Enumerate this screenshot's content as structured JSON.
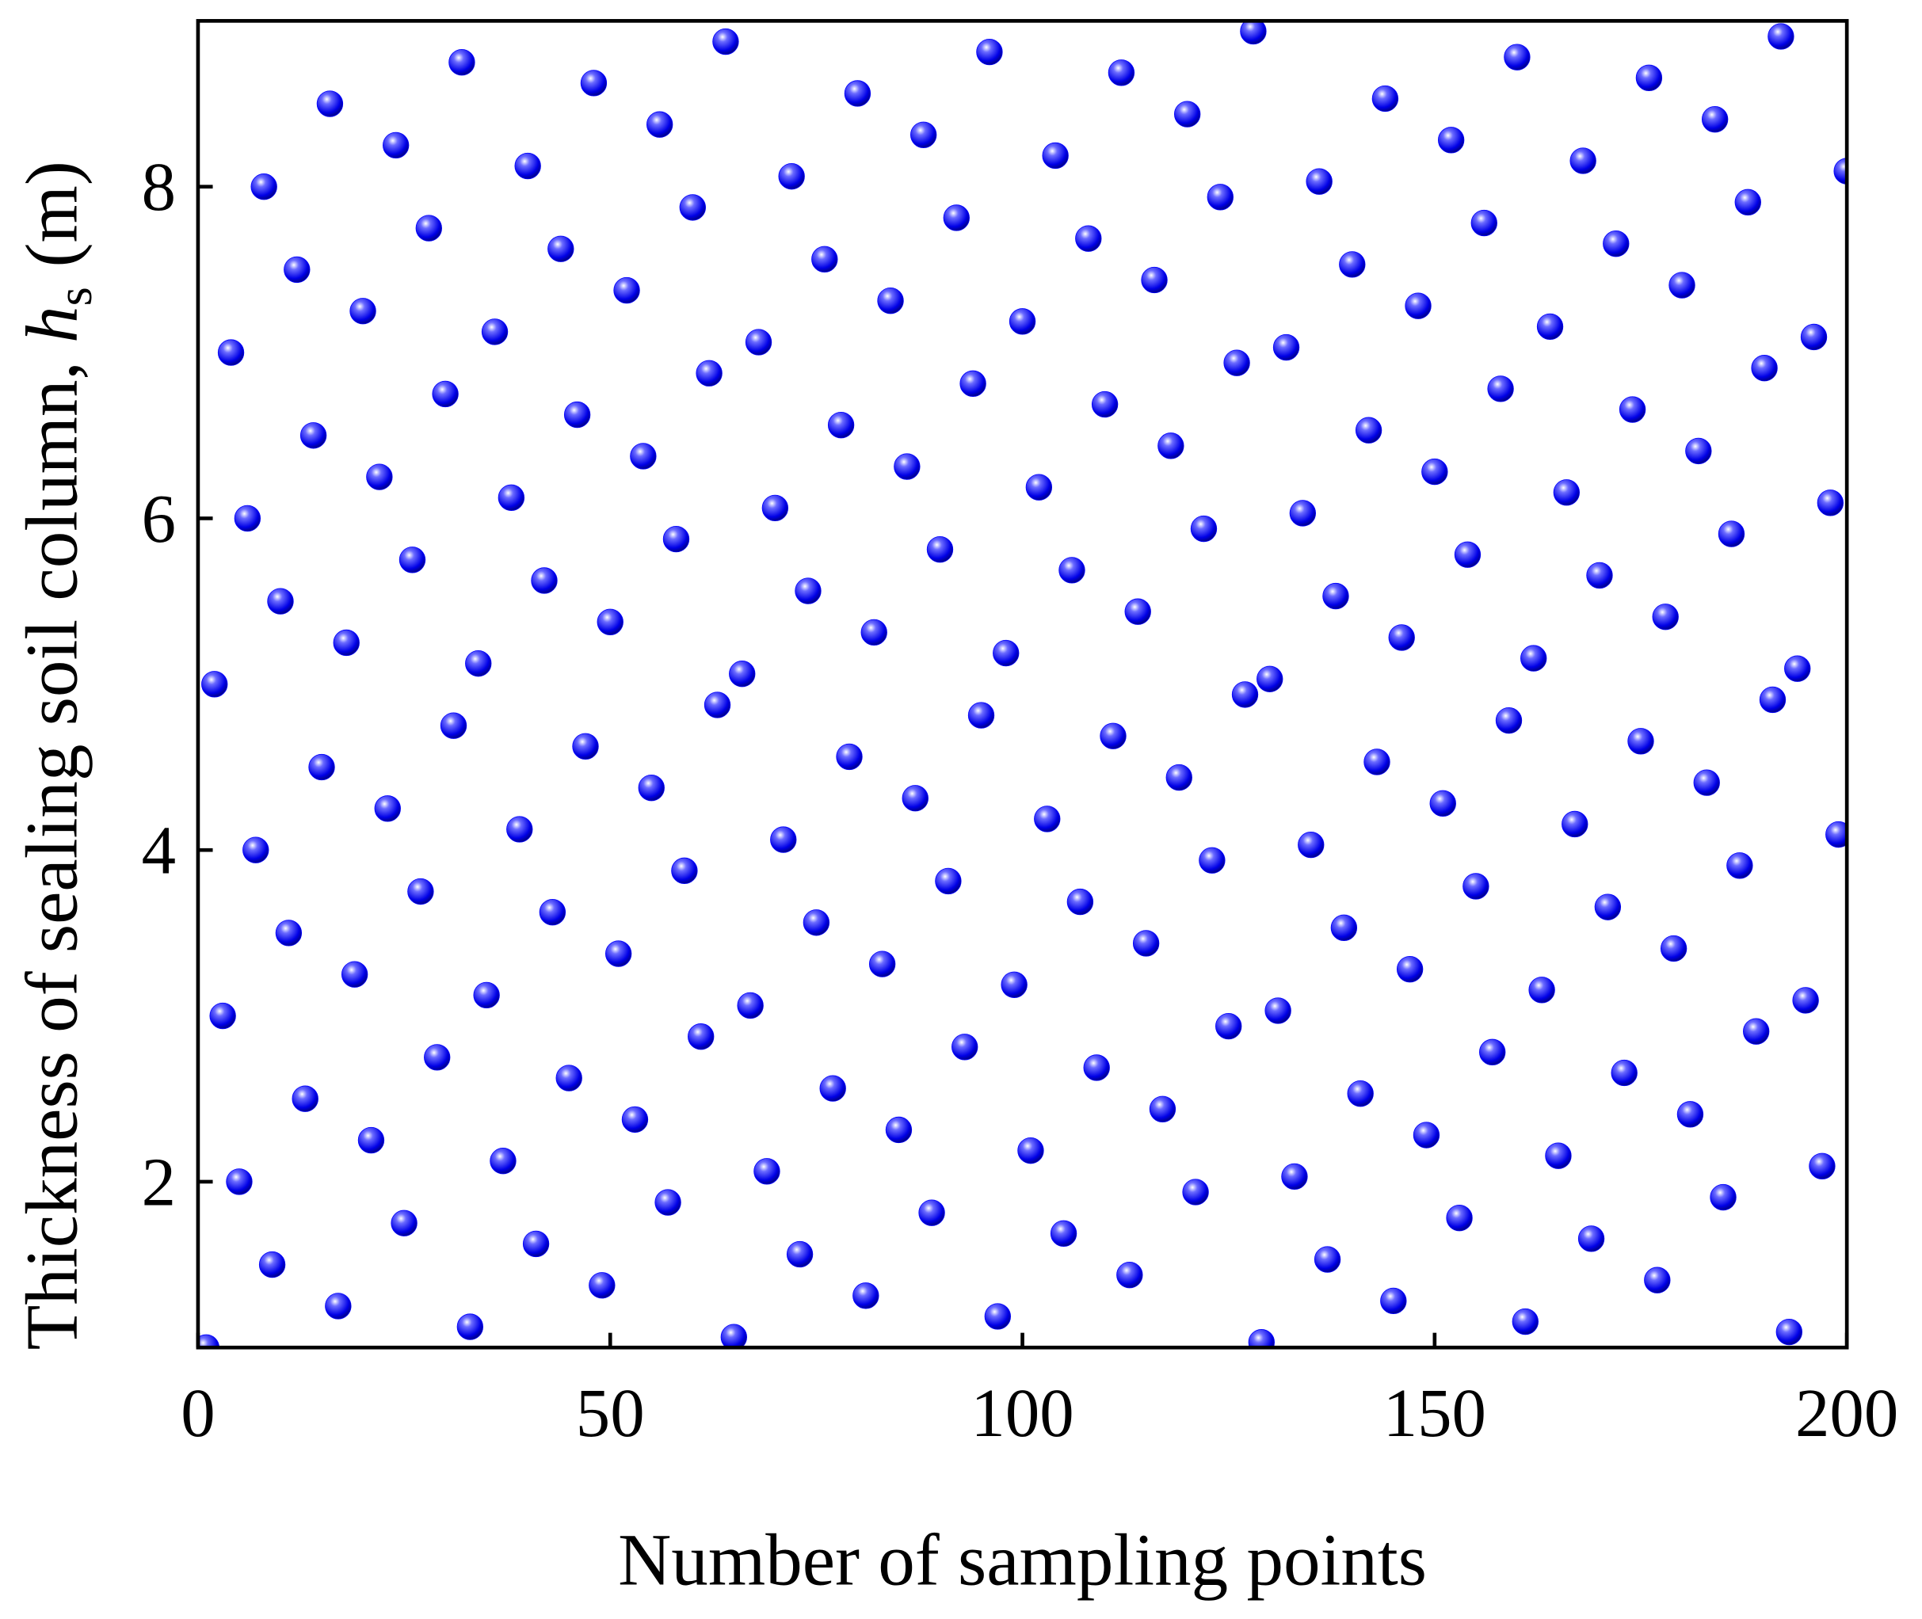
{
  "chart_data": {
    "type": "scatter",
    "xlabel": "Number of sampling points",
    "ylabel": "Thickness of sealing soil column, ",
    "ylabel_symbol": "h",
    "ylabel_subscript": "s",
    "ylabel_unit": "(m)",
    "color": "#0000ff",
    "xlim": [
      0,
      200
    ],
    "xticks": [
      0,
      50,
      100,
      150,
      200
    ],
    "ylim": [
      1,
      9
    ],
    "yticks": [
      2,
      4,
      6,
      8
    ],
    "x": [
      1,
      2,
      3,
      4,
      5,
      6,
      7,
      8,
      9,
      10,
      11,
      12,
      13,
      14,
      15,
      16,
      17,
      18,
      19,
      20,
      21,
      22,
      23,
      24,
      25,
      26,
      27,
      28,
      29,
      30,
      31,
      32,
      33,
      34,
      35,
      36,
      37,
      38,
      39,
      40,
      41,
      42,
      43,
      44,
      45,
      46,
      47,
      48,
      49,
      50,
      51,
      52,
      53,
      54,
      55,
      56,
      57,
      58,
      59,
      60,
      61,
      62,
      63,
      64,
      65,
      66,
      67,
      68,
      69,
      70,
      71,
      72,
      73,
      74,
      75,
      76,
      77,
      78,
      79,
      80,
      81,
      82,
      83,
      84,
      85,
      86,
      87,
      88,
      89,
      90,
      91,
      92,
      93,
      94,
      95,
      96,
      97,
      98,
      99,
      100,
      101,
      102,
      103,
      104,
      105,
      106,
      107,
      108,
      109,
      110,
      111,
      112,
      113,
      114,
      115,
      116,
      117,
      118,
      119,
      120,
      121,
      122,
      123,
      124,
      125,
      126,
      127,
      128,
      129,
      130,
      131,
      132,
      133,
      134,
      135,
      136,
      137,
      138,
      139,
      140,
      141,
      142,
      143,
      144,
      145,
      146,
      147,
      148,
      149,
      150,
      151,
      152,
      153,
      154,
      155,
      156,
      157,
      158,
      159,
      160,
      161,
      162,
      163,
      164,
      165,
      166,
      167,
      168,
      169,
      170,
      171,
      172,
      173,
      174,
      175,
      176,
      177,
      178,
      179,
      180,
      181,
      182,
      183,
      184,
      185,
      186,
      187,
      188,
      189,
      190,
      191,
      192,
      193,
      194,
      195,
      196,
      197,
      198,
      199,
      200
    ],
    "values": [
      1,
      5,
      3,
      7,
      2,
      6,
      4,
      8,
      1.5,
      5.5,
      3.5,
      7.5,
      2.5,
      6.5,
      4.5,
      8.5,
      1.25,
      5.25,
      3.25,
      7.25,
      2.25,
      6.25,
      4.25,
      8.25,
      1.75,
      5.75,
      3.75,
      7.75,
      2.75,
      6.75,
      4.75,
      8.75,
      1.125,
      5.125,
      3.125,
      7.125,
      2.125,
      6.125,
      4.125,
      8.125,
      1.625,
      5.625,
      3.625,
      7.625,
      2.625,
      6.625,
      4.625,
      8.625,
      1.375,
      5.375,
      3.375,
      7.375,
      2.375,
      6.375,
      4.375,
      8.375,
      1.875,
      5.875,
      3.875,
      7.875,
      2.875,
      6.875,
      4.875,
      8.875,
      1.0625,
      5.0625,
      3.0625,
      7.0625,
      2.0625,
      6.0625,
      4.0625,
      8.0625,
      1.5625,
      5.5625,
      3.5625,
      7.5625,
      2.5625,
      6.5625,
      4.5625,
      8.5625,
      1.3125,
      5.3125,
      3.3125,
      7.3125,
      2.3125,
      6.3125,
      4.3125,
      8.3125,
      1.8125,
      5.8125,
      3.8125,
      7.8125,
      2.8125,
      6.8125,
      4.8125,
      8.8125,
      1.1875,
      5.1875,
      3.1875,
      7.1875,
      2.1875,
      6.1875,
      4.1875,
      8.1875,
      1.6875,
      5.6875,
      3.6875,
      7.6875,
      2.6875,
      6.6875,
      4.6875,
      8.6875,
      1.4375,
      5.4375,
      3.4375,
      7.4375,
      2.4375,
      6.4375,
      4.4375,
      8.4375,
      1.9375,
      5.9375,
      3.9375,
      7.9375,
      2.9375,
      6.9375,
      4.9375,
      8.9375,
      1.03125,
      5.03125,
      3.03125,
      7.03125,
      2.03125,
      6.03125,
      4.03125,
      8.03125,
      1.53125,
      5.53125,
      3.53125,
      7.53125,
      2.53125,
      6.53125,
      4.53125,
      8.53125,
      1.28125,
      5.28125,
      3.28125,
      7.28125,
      2.28125,
      6.28125,
      4.28125,
      8.28125,
      1.78125,
      5.78125,
      3.78125,
      7.78125,
      2.78125,
      6.78125,
      4.78125,
      8.78125,
      1.15625,
      5.15625,
      3.15625,
      7.15625,
      2.15625,
      6.15625,
      4.15625,
      8.15625,
      1.65625,
      5.65625,
      3.65625,
      7.65625,
      2.65625,
      6.65625,
      4.65625,
      8.65625,
      1.40625,
      5.40625,
      3.40625,
      7.40625,
      2.40625,
      6.40625,
      4.40625,
      8.40625,
      1.90625,
      5.90625,
      3.90625,
      7.90625,
      2.90625,
      6.90625,
      4.90625,
      8.90625,
      1.09375,
      5.09375,
      3.09375,
      7.09375,
      2.09375,
      6.09375,
      4.09375,
      8.09375
    ]
  }
}
